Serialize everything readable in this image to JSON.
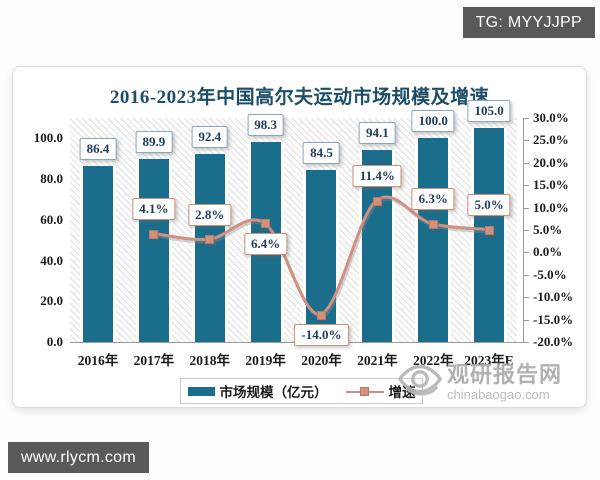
{
  "badges": {
    "top": "TG: MYYJJPP",
    "bottom": "www.rlycm.com"
  },
  "watermark": {
    "name": "观研报告网",
    "site": "chinabaogao.com"
  },
  "colors": {
    "bar": "#1b6d8c",
    "line": "#d29180",
    "line_marker_border": "#bc7a60",
    "title": "#1d4e68",
    "value_text": "#1f3a5c",
    "bar_label_border": "#8aa7bd",
    "line_label_border": "#cf8f79",
    "badge_bg": "#58595b",
    "watermark_gray": "#a9a9a9"
  },
  "chart_data": {
    "type": "bar+line",
    "title": "2016-2023年中国高尔夫运动市场规模及增速",
    "categories": [
      "2016年",
      "2017年",
      "2018年",
      "2019年",
      "2020年",
      "2021年",
      "2022年",
      "2023年E"
    ],
    "series": [
      {
        "name": "市场规模（亿元）",
        "type": "bar",
        "axis": "left",
        "color": "#1b6d8c",
        "values": [
          86.4,
          89.9,
          92.4,
          98.3,
          84.5,
          94.1,
          100.0,
          105.0
        ]
      },
      {
        "name": "增速",
        "type": "line",
        "axis": "right",
        "color": "#d29180",
        "unit": "%",
        "values": [
          null,
          4.1,
          2.8,
          6.4,
          -14.0,
          11.4,
          6.3,
          5.0
        ],
        "label_placement": [
          null,
          "above",
          "above",
          "below",
          "below",
          "above",
          "above",
          "above"
        ]
      }
    ],
    "left_axis": {
      "ticks": [
        0.0,
        20.0,
        40.0,
        60.0,
        80.0,
        100.0
      ],
      "max": 110,
      "decimals": 1
    },
    "right_axis": {
      "min": -20,
      "max": 30,
      "step": 5,
      "decimals": 1,
      "suffix": "%"
    },
    "grid": false,
    "legend_position": "bottom",
    "plot_background": "diagonal-hatch"
  }
}
